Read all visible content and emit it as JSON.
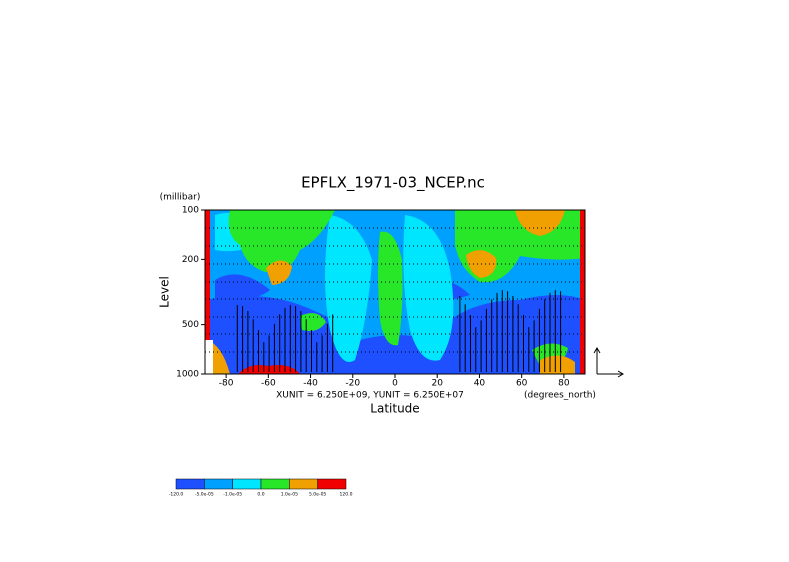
{
  "chart_data": {
    "type": "contour",
    "title": "EPFLX_1971-03_NCEP.nc",
    "y_unit": "(millibar)",
    "ylabel": "Level",
    "xlabel": "Latitude",
    "x_unit": "(degrees_north)",
    "vector_note": "XUNIT = 6.250E+09, YUNIT = 6.250E+07",
    "xlim": [
      -90,
      90
    ],
    "xticks": [
      -80,
      -60,
      -40,
      -20,
      0,
      20,
      40,
      60,
      80
    ],
    "ylim": [
      100,
      1000
    ],
    "yticks": [
      100,
      200,
      500,
      1000
    ],
    "y_log": true,
    "y_reversed": true,
    "colorbar": {
      "levels": [
        {
          "value": -120,
          "label": "-120.0"
        },
        {
          "value": -5e-05,
          "label": "-5.0e-05"
        },
        {
          "value": -1e-05,
          "label": "-1.0e-05"
        },
        {
          "value": 0,
          "label": "0.0"
        },
        {
          "value": 1e-05,
          "label": "1.0e-05"
        },
        {
          "value": 5e-05,
          "label": "5.0e-05"
        },
        {
          "value": 120,
          "label": "120.0"
        }
      ],
      "colors": [
        "#1e50ff",
        "#00a0ff",
        "#00e6ff",
        "#28e628",
        "#f0a000",
        "#f00000"
      ]
    }
  }
}
